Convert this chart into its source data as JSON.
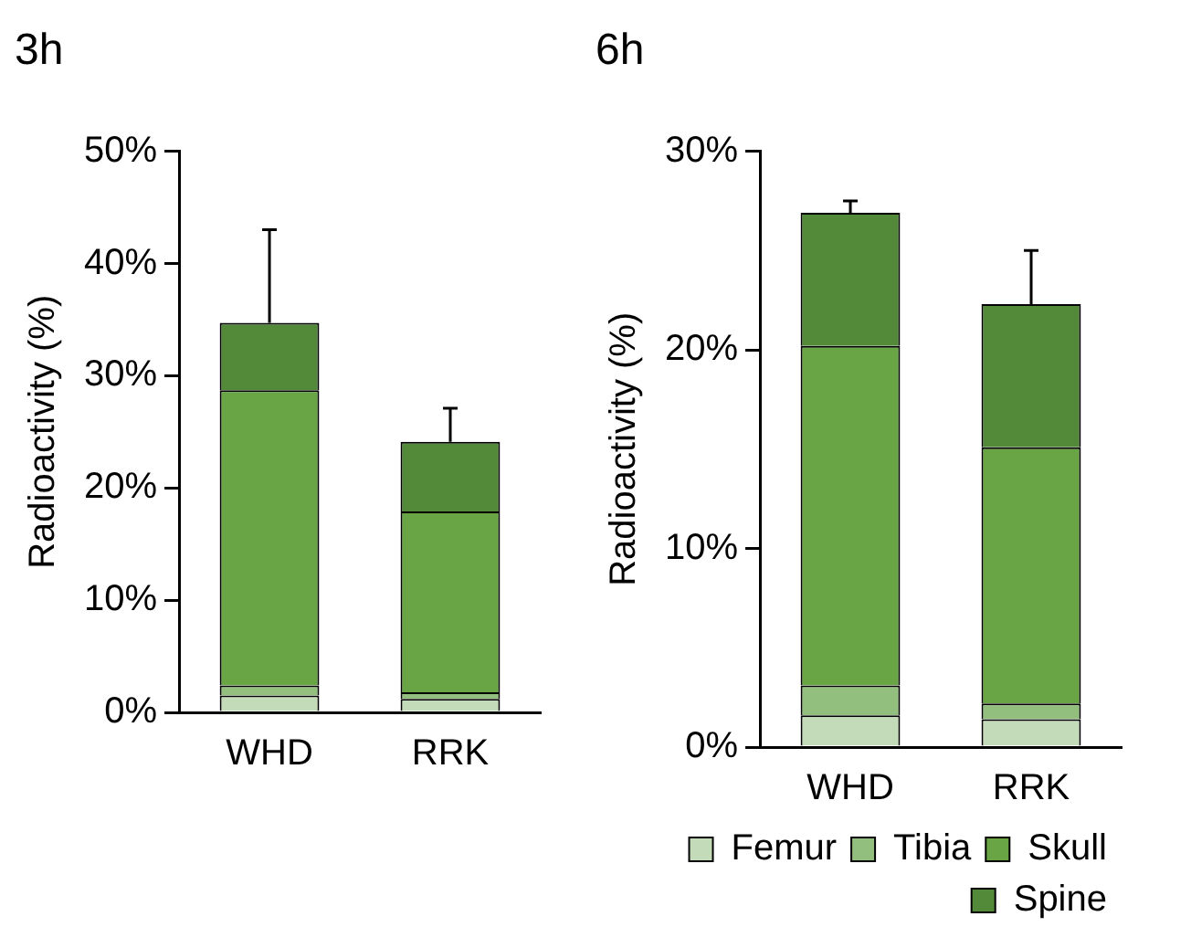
{
  "chart_data": [
    {
      "type": "bar",
      "title": "3h",
      "ylabel": "Radioactivity (%)",
      "categories": [
        "WHD",
        "RRK"
      ],
      "stacked": true,
      "ylim": [
        0,
        50
      ],
      "yticks": [
        {
          "value": 0,
          "label": "0%"
        },
        {
          "value": 10,
          "label": "10%"
        },
        {
          "value": 20,
          "label": "20%"
        },
        {
          "value": 30,
          "label": "30%"
        },
        {
          "value": 40,
          "label": "40%"
        },
        {
          "value": 50,
          "label": "50%"
        }
      ],
      "legend": false,
      "series": [
        {
          "color": "#c3dbb8",
          "values": [
            1.5,
            1.2
          ]
        },
        {
          "color": "#93bf7e",
          "values": [
            0.9,
            0.6
          ]
        },
        {
          "color": "#69a544",
          "values": [
            26.3,
            16.1
          ]
        },
        {
          "color": "#538a3a",
          "values": [
            6.0,
            6.2
          ],
          "errors": [
            8.3,
            3.0
          ]
        }
      ]
    },
    {
      "type": "bar",
      "title": "6h",
      "ylabel": "Radioactivity (%)",
      "categories": [
        "WHD",
        "RRK"
      ],
      "stacked": true,
      "ylim": [
        0,
        30
      ],
      "yticks": [
        {
          "value": 0,
          "label": "0%"
        },
        {
          "value": 10,
          "label": "10%"
        },
        {
          "value": 20,
          "label": "20%"
        },
        {
          "value": 30,
          "label": "30%"
        }
      ],
      "legend": "bottom",
      "series": [
        {
          "name": "Femur",
          "color": "#c3dbb8",
          "values": [
            1.6,
            1.4
          ]
        },
        {
          "name": "Tibia",
          "color": "#93bf7e",
          "values": [
            1.5,
            0.8
          ]
        },
        {
          "name": "Skull",
          "color": "#69a544",
          "values": [
            17.1,
            12.9
          ]
        },
        {
          "name": "Spine",
          "color": "#538a3a",
          "values": [
            6.7,
            7.2
          ],
          "errors": [
            0.6,
            2.7
          ]
        }
      ]
    }
  ]
}
